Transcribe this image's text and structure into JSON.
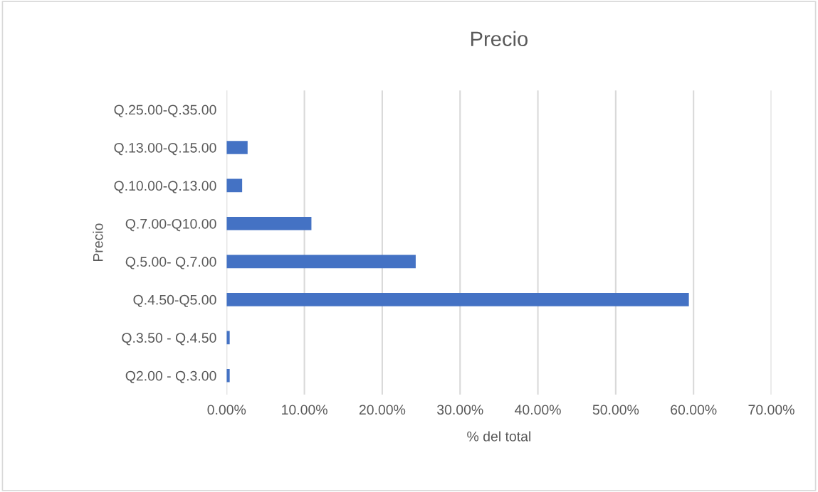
{
  "chart_data": {
    "type": "bar",
    "orientation": "horizontal",
    "title": "Precio",
    "xlabel": "% del total",
    "ylabel": "Precio",
    "categories": [
      "Q.25.00-Q.35.00",
      "Q.13.00-Q.15.00",
      "Q.10.00-Q.13.00",
      "Q.7.00-Q10.00",
      "Q.5.00- Q.7.00",
      "Q.4.50-Q5.00",
      "Q.3.50 - Q.4.50",
      "Q2.00 - Q.3.00"
    ],
    "values": [
      0,
      2.7,
      2.0,
      10.9,
      24.3,
      59.4,
      0.4,
      0.4
    ],
    "color": "#4472c4",
    "xlim": [
      0,
      70
    ],
    "xticks": [
      {
        "value": 0,
        "label": "0.00%"
      },
      {
        "value": 10,
        "label": "10.00%"
      },
      {
        "value": 20,
        "label": "20.00%"
      },
      {
        "value": 30,
        "label": "30.00%"
      },
      {
        "value": 40,
        "label": "40.00%"
      },
      {
        "value": 50,
        "label": "50.00%"
      },
      {
        "value": 60,
        "label": "60.00%"
      },
      {
        "value": 70,
        "label": "70.00%"
      }
    ],
    "grid": "x",
    "legend": false
  }
}
